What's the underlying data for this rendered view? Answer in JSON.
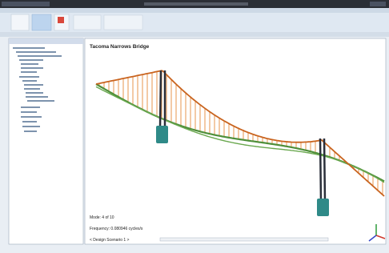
{
  "viewport": {
    "title": "Tacoma Narrows Bridge",
    "mode": "Mode: 4 of 10",
    "frequency": "Frequency: 0.080946 cycles/s",
    "scenario": "< Design Scenario 1 >"
  }
}
